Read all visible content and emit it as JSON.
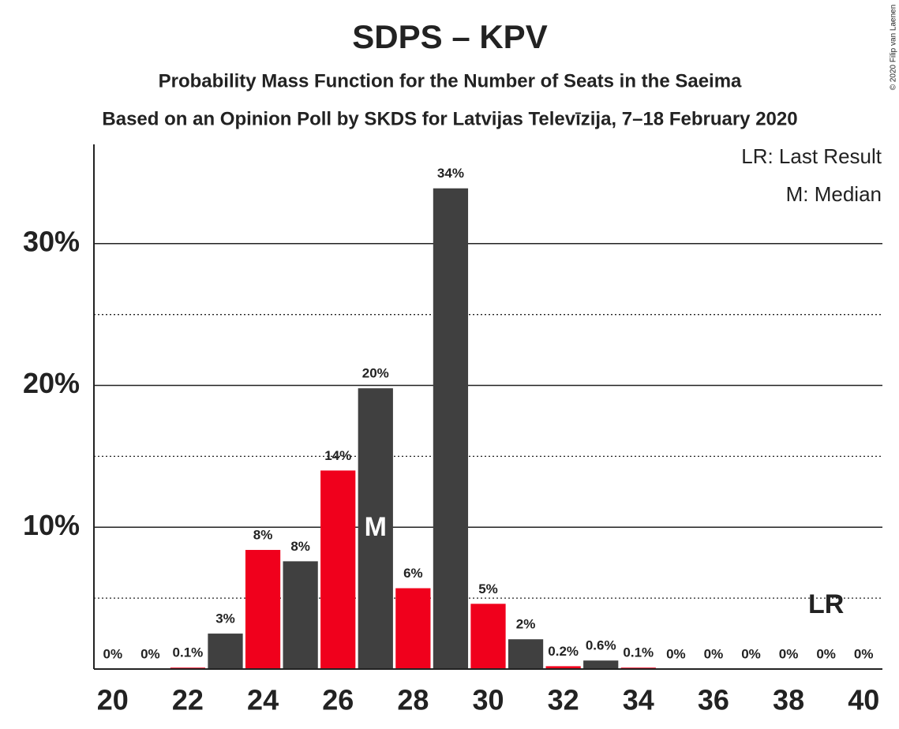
{
  "chart_data": {
    "type": "bar",
    "title": "SDPS – KPV",
    "subtitles": [
      "Probability Mass Function for the Number of Seats in the Saeima",
      "Based on an Opinion Poll by SKDS for Latvijas Televīzija, 7–18 February 2020"
    ],
    "credit": "© 2020 Filip van Laenen",
    "x": [
      20,
      21,
      22,
      23,
      24,
      25,
      26,
      27,
      28,
      29,
      30,
      31,
      32,
      33,
      34,
      35,
      36,
      37,
      38,
      39,
      40
    ],
    "values": [
      0,
      0,
      0.1,
      2.5,
      8.4,
      7.6,
      14.0,
      19.8,
      5.7,
      33.9,
      4.6,
      2.1,
      0.2,
      0.6,
      0.1,
      0,
      0,
      0,
      0,
      0,
      0
    ],
    "value_labels": [
      "0%",
      "0%",
      "0.1%",
      "3%",
      "8%",
      "8%",
      "14%",
      "20%",
      "6%",
      "34%",
      "5%",
      "2%",
      "0.2%",
      "0.6%",
      "0.1%",
      "0%",
      "0%",
      "0%",
      "0%",
      "0%",
      "0%"
    ],
    "colors": [
      "#f0001c",
      "#404040",
      "#f0001c",
      "#404040",
      "#f0001c",
      "#404040",
      "#f0001c",
      "#404040",
      "#f0001c",
      "#404040",
      "#f0001c",
      "#404040",
      "#f0001c",
      "#404040",
      "#f0001c",
      "#404040",
      "#f0001c",
      "#404040",
      "#f0001c",
      "#404040",
      "#f0001c"
    ],
    "xlim": [
      19.5,
      40.5
    ],
    "xticks": [
      20,
      22,
      24,
      26,
      28,
      30,
      32,
      34,
      36,
      38,
      40
    ],
    "ylim": [
      0,
      37
    ],
    "yticks": [
      {
        "value": 10,
        "label": "10%"
      },
      {
        "value": 20,
        "label": "20%"
      },
      {
        "value": 30,
        "label": "30%"
      }
    ],
    "minor_yticks": [
      5,
      15,
      25
    ],
    "grid": true,
    "median": 27,
    "median_label": "M",
    "last_result": 39,
    "last_result_label": "LR",
    "legend": [
      "LR: Last Result",
      "M: Median"
    ],
    "legend_position": "top-right"
  }
}
